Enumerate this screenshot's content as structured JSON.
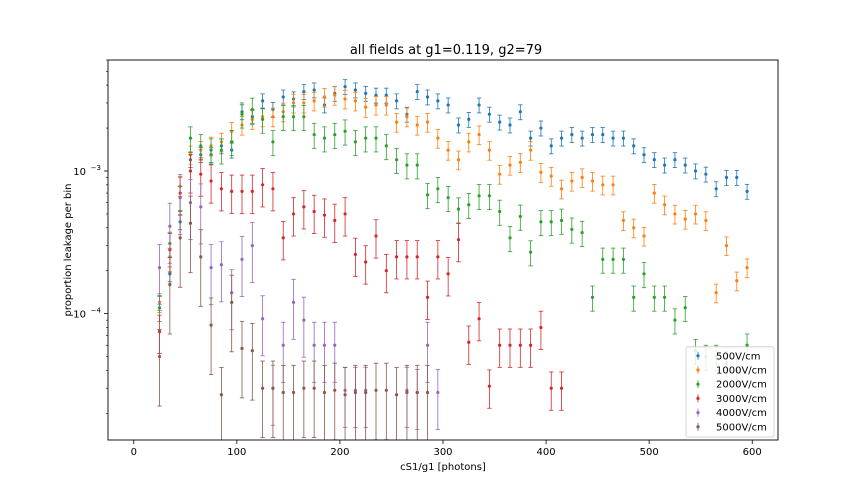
{
  "chart_data": {
    "type": "scatter",
    "title": "all fields at g1=0.119, g2=79",
    "xlabel": "cS1/g1 [photons]",
    "ylabel": "proportion leakage per bin",
    "xlim": [
      -25,
      625
    ],
    "ylim": [
      1.3e-05,
      0.006
    ],
    "yscale": "log",
    "xticks": [
      0,
      100,
      200,
      300,
      400,
      500,
      600
    ],
    "yticks": [
      {
        "value": 0.0001,
        "label": "10",
        "exp": "−4"
      },
      {
        "value": 0.001,
        "label": "10",
        "exp": "−3"
      }
    ],
    "grid": false,
    "legend_position": "bottom-right",
    "series": [
      {
        "name": "500V/cm",
        "color": "#1f77b4",
        "err": 0.12,
        "x": [
          25,
          35,
          45,
          55,
          65,
          75,
          85,
          95,
          105,
          115,
          125,
          135,
          145,
          155,
          165,
          175,
          185,
          195,
          205,
          215,
          225,
          235,
          245,
          255,
          265,
          275,
          285,
          295,
          305,
          315,
          325,
          335,
          345,
          355,
          365,
          375,
          385,
          395,
          405,
          415,
          425,
          435,
          445,
          455,
          465,
          475,
          485,
          495,
          505,
          515,
          525,
          535,
          545,
          555,
          565,
          575,
          585,
          595
        ],
        "y": [
          0.00012,
          0.00019,
          0.00044,
          0.0012,
          0.0013,
          0.0013,
          0.0015,
          0.0014,
          0.0026,
          0.0024,
          0.0031,
          0.0027,
          0.0033,
          0.0032,
          0.0036,
          0.0037,
          0.0029,
          0.0035,
          0.0039,
          0.0037,
          0.0035,
          0.0034,
          0.0034,
          0.0031,
          0.0025,
          0.0036,
          0.0033,
          0.0031,
          0.0029,
          0.0021,
          0.0023,
          0.0029,
          0.0025,
          0.0022,
          0.0021,
          0.0026,
          0.0017,
          0.002,
          0.0015,
          0.0017,
          0.0018,
          0.0017,
          0.0018,
          0.0018,
          0.0017,
          0.0017,
          0.0015,
          0.0013,
          0.0012,
          0.0011,
          0.0012,
          0.0011,
          0.001,
          0.00095,
          0.00075,
          0.0009,
          0.0009,
          0.00072
        ]
      },
      {
        "name": "1000V/cm",
        "color": "#ff7f0e",
        "err": 0.15,
        "x": [
          25,
          35,
          45,
          55,
          65,
          75,
          85,
          95,
          105,
          115,
          125,
          135,
          145,
          155,
          165,
          175,
          185,
          195,
          205,
          215,
          225,
          235,
          245,
          255,
          265,
          275,
          285,
          295,
          305,
          315,
          325,
          335,
          345,
          355,
          365,
          375,
          385,
          395,
          405,
          415,
          425,
          435,
          445,
          455,
          465,
          475,
          485,
          495,
          505,
          515,
          525,
          535,
          545,
          555,
          565,
          575,
          585,
          595
        ],
        "y": [
          0.00012,
          0.00025,
          0.00078,
          0.0013,
          0.0014,
          0.0015,
          0.0016,
          0.0019,
          0.0021,
          0.0023,
          0.0024,
          0.0024,
          0.0026,
          0.003,
          0.003,
          0.0031,
          0.0033,
          0.0034,
          0.0032,
          0.0031,
          0.0028,
          0.0029,
          0.0029,
          0.0022,
          0.0024,
          0.0021,
          0.0022,
          0.0017,
          0.0014,
          0.0012,
          0.0016,
          0.0018,
          0.0014,
          0.00095,
          0.0011,
          0.00115,
          0.0014,
          0.00098,
          0.00092,
          0.00075,
          0.00085,
          0.0009,
          0.00085,
          0.0008,
          0.0008,
          0.00045,
          0.0004,
          0.00035,
          0.0007,
          0.00058,
          0.0005,
          0.00046,
          0.0005,
          0.00045,
          0.00014,
          0.0003,
          0.00017,
          0.00021
        ]
      },
      {
        "name": "2000V/cm",
        "color": "#2ca02c",
        "err": 0.2,
        "x": [
          25,
          35,
          45,
          55,
          65,
          75,
          85,
          95,
          105,
          115,
          125,
          135,
          145,
          155,
          165,
          175,
          185,
          195,
          205,
          215,
          225,
          235,
          245,
          255,
          265,
          275,
          285,
          295,
          305,
          315,
          325,
          335,
          345,
          355,
          365,
          375,
          385,
          395,
          405,
          415,
          425,
          435,
          445,
          455,
          465,
          475,
          485,
          495,
          505,
          515,
          525,
          535,
          545,
          555,
          565,
          575,
          585,
          595
        ],
        "y": [
          0.00011,
          0.00031,
          0.00065,
          0.0017,
          0.0015,
          0.0014,
          0.0014,
          0.0016,
          0.0025,
          0.0027,
          0.0023,
          0.0016,
          0.0024,
          0.0024,
          0.0024,
          0.0018,
          0.0017,
          0.0018,
          0.0019,
          0.0016,
          0.0017,
          0.0017,
          0.0015,
          0.0012,
          0.0011,
          0.0011,
          0.00068,
          0.00075,
          0.00065,
          0.00054,
          0.00058,
          0.00067,
          0.00067,
          0.00052,
          0.00034,
          0.00048,
          0.00027,
          0.00044,
          0.00044,
          0.00045,
          0.00039,
          0.00037,
          0.00013,
          0.00024,
          0.00024,
          0.00024,
          0.00013,
          0.00019,
          0.00013,
          0.00013,
          9e-05,
          0.00011,
          5.5e-05,
          5e-05,
          5e-05,
          4.5e-05,
          4e-05,
          6e-05
        ]
      },
      {
        "name": "3000V/cm",
        "color": "#d62728",
        "err": 0.3,
        "x": [
          25,
          35,
          45,
          55,
          65,
          75,
          85,
          95,
          105,
          115,
          125,
          135,
          145,
          155,
          165,
          175,
          185,
          195,
          205,
          215,
          225,
          235,
          245,
          255,
          265,
          275,
          285,
          295,
          305,
          315,
          325,
          335,
          345,
          355,
          365,
          375,
          385,
          395,
          405,
          415
        ],
        "y": [
          7.5e-05,
          0.00028,
          0.0007,
          0.001,
          0.00095,
          0.00085,
          0.00075,
          0.00072,
          0.00072,
          0.00072,
          0.0008,
          0.00075,
          0.00034,
          0.0005,
          0.00056,
          0.00052,
          0.00049,
          0.00045,
          0.0005,
          0.00026,
          0.00023,
          0.00035,
          0.0002,
          0.00025,
          0.00025,
          0.00025,
          0.00013,
          0.00025,
          0.00019,
          0.00033,
          6.3e-05,
          9.2e-05,
          3.1e-05,
          6e-05,
          6e-05,
          6e-05,
          6e-05,
          8e-05,
          3e-05,
          3e-05
        ]
      },
      {
        "name": "4000V/cm",
        "color": "#9467bd",
        "err": 0.45,
        "x": [
          25,
          35,
          45,
          55,
          65,
          75,
          85,
          95,
          105,
          115,
          125,
          135,
          145,
          155,
          165,
          175,
          185,
          195,
          205,
          215,
          225,
          265,
          275,
          285,
          295
        ],
        "y": [
          0.00021,
          0.00041,
          0.00065,
          0.0006,
          0.00056,
          0.00021,
          0.00022,
          0.00014,
          0.00024,
          0.0003,
          9.2e-05,
          3e-05,
          6e-05,
          0.00012,
          9e-05,
          6e-05,
          6e-05,
          6e-05,
          2.9e-05,
          2.9e-05,
          2.9e-05,
          2.9e-05,
          2.8e-05,
          6e-05,
          2.8e-05
        ]
      },
      {
        "name": "5000V/cm",
        "color": "#8c564b",
        "err": 0.55,
        "x": [
          25,
          35,
          45,
          55,
          65,
          75,
          85,
          95,
          105,
          115,
          125,
          135,
          145,
          155,
          165,
          175,
          185,
          195,
          205,
          215,
          225,
          235,
          245,
          255,
          265,
          275,
          285
        ],
        "y": [
          5e-05,
          0.00016,
          0.00034,
          0.00043,
          0.00025,
          8.3e-05,
          2.7e-05,
          0.00012,
          5.7e-05,
          5.5e-05,
          3e-05,
          3e-05,
          2.8e-05,
          2.8e-05,
          3e-05,
          3e-05,
          2.8e-05,
          2.9e-05,
          2.7e-05,
          2.8e-05,
          2.8e-05,
          2.9e-05,
          2.9e-05,
          2.7e-05,
          2.8e-05,
          2.8e-05,
          2.8e-05
        ]
      }
    ]
  }
}
